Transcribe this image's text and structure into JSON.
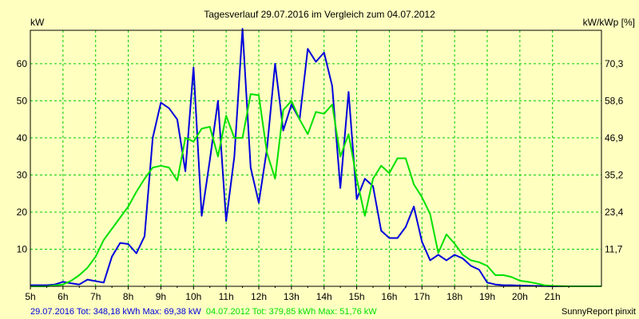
{
  "chart_data": {
    "type": "line",
    "title": "Tagesverlauf 29.07.2016 im Vergleich zum 04.07.2012",
    "ylabel_left": "kW",
    "ylabel_right": "kW/kWp [%]",
    "xlim": [
      5.0,
      22.5
    ],
    "ylim": [
      0,
      69
    ],
    "grid": true,
    "x_ticks": [
      {
        "value": 5,
        "label": "5h"
      },
      {
        "value": 6,
        "label": "6h"
      },
      {
        "value": 7,
        "label": "7h"
      },
      {
        "value": 8,
        "label": "8h"
      },
      {
        "value": 9,
        "label": "9h"
      },
      {
        "value": 10,
        "label": "10h"
      },
      {
        "value": 11,
        "label": "11h"
      },
      {
        "value": 12,
        "label": "12h"
      },
      {
        "value": 13,
        "label": "13h"
      },
      {
        "value": 14,
        "label": "14h"
      },
      {
        "value": 15,
        "label": "15h"
      },
      {
        "value": 16,
        "label": "16h"
      },
      {
        "value": 17,
        "label": "17h"
      },
      {
        "value": 18,
        "label": "18h"
      },
      {
        "value": 19,
        "label": "19h"
      },
      {
        "value": 20,
        "label": "20h"
      },
      {
        "value": 21,
        "label": "21h"
      }
    ],
    "y_ticks_left": [
      {
        "value": 10,
        "label": "10"
      },
      {
        "value": 20,
        "label": "20"
      },
      {
        "value": 30,
        "label": "30"
      },
      {
        "value": 40,
        "label": "40"
      },
      {
        "value": 50,
        "label": "50"
      },
      {
        "value": 60,
        "label": "60"
      }
    ],
    "y_ticks_right": [
      {
        "value": 10,
        "label": "11,7"
      },
      {
        "value": 20,
        "label": "23,4"
      },
      {
        "value": 30,
        "label": "35,2"
      },
      {
        "value": 40,
        "label": "46,9"
      },
      {
        "value": 50,
        "label": "58,6"
      },
      {
        "value": 60,
        "label": "70,3"
      }
    ],
    "series": [
      {
        "legend": "29.07.2016 Tot: 348,18 kWh Max: 69,38 kW",
        "color": "#0000dd",
        "x": [
          5.0,
          5.5,
          5.75,
          6.0,
          6.25,
          6.5,
          6.75,
          7.0,
          7.25,
          7.5,
          7.75,
          8.0,
          8.25,
          8.5,
          8.75,
          9.0,
          9.25,
          9.5,
          9.75,
          10.0,
          10.25,
          10.5,
          10.75,
          11.0,
          11.25,
          11.5,
          11.75,
          12.0,
          12.25,
          12.5,
          12.75,
          13.0,
          13.25,
          13.5,
          13.75,
          14.0,
          14.25,
          14.5,
          14.75,
          15.0,
          15.25,
          15.5,
          15.75,
          16.0,
          16.25,
          16.5,
          16.75,
          17.0,
          17.25,
          17.5,
          17.75,
          18.0,
          18.25,
          18.5,
          18.75,
          19.0,
          19.25,
          19.5,
          19.75,
          20.0,
          20.5,
          21.0,
          21.5,
          22.0,
          22.5
        ],
        "y": [
          0.3,
          0.3,
          0.5,
          1.2,
          0.8,
          0.5,
          1.8,
          1.4,
          1.0,
          8.0,
          11.7,
          11.4,
          8.9,
          13.5,
          40.0,
          49.5,
          48.0,
          45.0,
          31.0,
          59.0,
          19.0,
          34.0,
          50.0,
          17.6,
          35.0,
          69.4,
          32.0,
          22.5,
          37.0,
          60.0,
          42.0,
          49.0,
          45.0,
          64.0,
          60.5,
          63.0,
          54.0,
          26.5,
          52.4,
          23.5,
          29.0,
          27.0,
          15.0,
          13.0,
          13.0,
          16.0,
          21.5,
          12.0,
          7.0,
          8.5,
          7.0,
          8.5,
          7.5,
          5.5,
          4.5,
          1.0,
          0.5,
          0.3,
          0.3,
          0.2,
          0.1,
          0.0,
          0.0,
          0.0,
          0.0
        ]
      },
      {
        "legend": "04.07.2012 Tot: 379,85 kWh Max: 51,76 kW",
        "color": "#00e000",
        "x": [
          5.0,
          5.5,
          6.0,
          6.25,
          6.5,
          6.75,
          7.0,
          7.25,
          7.5,
          7.75,
          8.0,
          8.25,
          8.5,
          8.75,
          9.0,
          9.25,
          9.5,
          9.75,
          10.0,
          10.25,
          10.5,
          10.75,
          11.0,
          11.25,
          11.5,
          11.75,
          12.0,
          12.25,
          12.5,
          12.75,
          13.0,
          13.25,
          13.5,
          13.75,
          14.0,
          14.25,
          14.5,
          14.75,
          15.0,
          15.25,
          15.5,
          15.75,
          16.0,
          16.25,
          16.5,
          16.75,
          17.0,
          17.25,
          17.5,
          17.75,
          18.0,
          18.25,
          18.5,
          18.75,
          19.0,
          19.25,
          19.5,
          19.75,
          20.0,
          20.25,
          20.5,
          20.75,
          21.0,
          21.5,
          22.0,
          22.5
        ],
        "y": [
          0.0,
          0.0,
          0.5,
          1.5,
          3.0,
          5.0,
          8.0,
          12.5,
          15.5,
          18.5,
          21.5,
          25.5,
          29.0,
          32.0,
          32.5,
          32.0,
          28.5,
          40.0,
          39.0,
          42.5,
          43.0,
          35.0,
          46.0,
          40.0,
          40.0,
          51.8,
          51.5,
          36.0,
          29.0,
          47.5,
          50.0,
          45.0,
          41.0,
          47.0,
          46.5,
          49.0,
          35.0,
          41.0,
          29.0,
          19.0,
          29.0,
          32.5,
          30.5,
          34.5,
          34.5,
          27.5,
          24.0,
          19.5,
          9.0,
          14.0,
          11.5,
          8.5,
          7.0,
          6.5,
          5.5,
          3.0,
          3.0,
          2.5,
          1.5,
          1.2,
          0.8,
          0.3,
          0.1,
          0.0,
          0.0,
          0.0
        ]
      }
    ]
  },
  "footer": {
    "left_series1": "29.07.2016 Tot: 348,18 kWh Max: 69,38 kW",
    "left_series2": "04.07.2012 Tot: 379,85 kWh Max: 51,76 kW",
    "right": "SunnyReport pinxit"
  },
  "colors": {
    "background": "#ffffc0",
    "grid": "#00cc00",
    "axis": "#000000",
    "series1": "#0000dd",
    "series2": "#00e000"
  }
}
